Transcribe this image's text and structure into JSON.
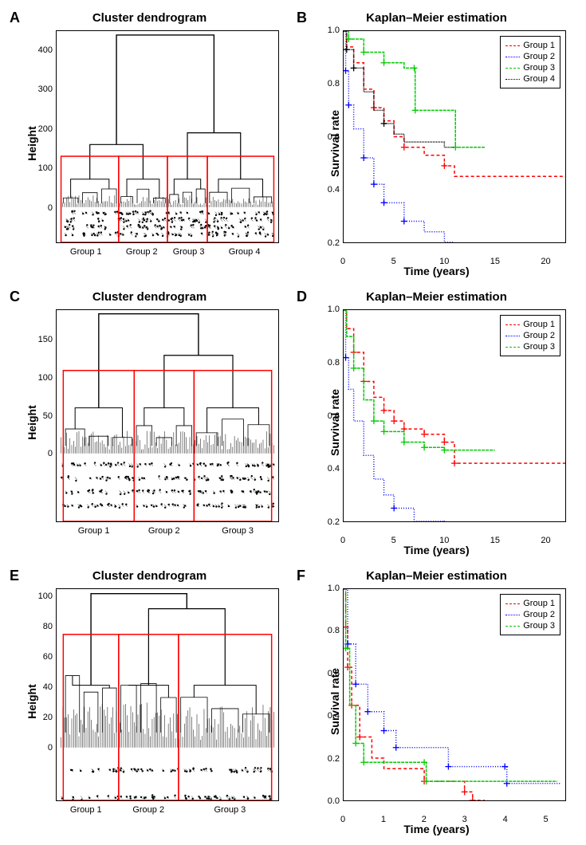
{
  "figure": {
    "background_color": "#ffffff",
    "panel_label_fontsize": 18,
    "title_fontsize": 15,
    "axis_label_fontsize": 14,
    "tick_fontsize": 11
  },
  "colors": {
    "group1": "#ff0000",
    "group2": "#0000ff",
    "group3": "#00cc00",
    "group4": "#000000",
    "cluster_box": "#ff0000",
    "axis": "#000000"
  },
  "panels": {
    "A": {
      "label": "A",
      "title": "Cluster dendrogram",
      "ylabel": "Height",
      "type": "dendrogram",
      "y_ticks": [
        0,
        100,
        200,
        300,
        400
      ],
      "ylim": [
        -90,
        450
      ],
      "groups": [
        "Group 1",
        "Group 2",
        "Group 3",
        "Group 4"
      ],
      "group_box_ymax": 130,
      "group_extents": [
        {
          "x0": 0.02,
          "x1": 0.28
        },
        {
          "x0": 0.28,
          "x1": 0.5
        },
        {
          "x0": 0.5,
          "x1": 0.68
        },
        {
          "x0": 0.68,
          "x1": 0.98
        }
      ],
      "top_merge_height": 440,
      "sub_merge_heights": [
        160,
        190
      ]
    },
    "B": {
      "label": "B",
      "title": "Kaplan–Meier estimation",
      "xlabel": "Time (years)",
      "ylabel": "Survival rate",
      "type": "km",
      "xlim": [
        0,
        22
      ],
      "ylim": [
        0.2,
        1.0
      ],
      "x_ticks": [
        0,
        5,
        10,
        15,
        20
      ],
      "y_ticks": [
        0.2,
        0.4,
        0.6,
        0.8,
        1.0
      ],
      "legend": [
        "Group 1",
        "Group 2",
        "Group 3",
        "Group 4"
      ],
      "legend_colors": [
        "#ff0000",
        "#0000ff",
        "#00cc00",
        "#000000"
      ],
      "legend_dash": [
        "4,3",
        "1,2",
        "4,1",
        "1,1"
      ],
      "series": [
        {
          "color": "#ff0000",
          "dash": "4,3",
          "points": [
            [
              0,
              1.0
            ],
            [
              0.3,
              0.94
            ],
            [
              1,
              0.88
            ],
            [
              2,
              0.78
            ],
            [
              3,
              0.71
            ],
            [
              4,
              0.66
            ],
            [
              5,
              0.6
            ],
            [
              6,
              0.56
            ],
            [
              8,
              0.53
            ],
            [
              10,
              0.49
            ],
            [
              11,
              0.45
            ],
            [
              22,
              0.45
            ]
          ]
        },
        {
          "color": "#0000ff",
          "dash": "1,2",
          "points": [
            [
              0,
              1.0
            ],
            [
              0.2,
              0.85
            ],
            [
              0.5,
              0.72
            ],
            [
              1,
              0.63
            ],
            [
              2,
              0.52
            ],
            [
              3,
              0.42
            ],
            [
              4,
              0.35
            ],
            [
              6,
              0.28
            ],
            [
              8,
              0.24
            ],
            [
              10,
              0.2
            ],
            [
              11,
              0.19
            ],
            [
              15,
              0.19
            ]
          ]
        },
        {
          "color": "#00cc00",
          "dash": "4,1",
          "points": [
            [
              0,
              1.0
            ],
            [
              0.5,
              0.97
            ],
            [
              2,
              0.92
            ],
            [
              4,
              0.88
            ],
            [
              6,
              0.86
            ],
            [
              7,
              0.86
            ],
            [
              7.1,
              0.7
            ],
            [
              11,
              0.7
            ],
            [
              11.1,
              0.56
            ],
            [
              14,
              0.56
            ]
          ]
        },
        {
          "color": "#000000",
          "dash": "1,1",
          "points": [
            [
              0,
              1.0
            ],
            [
              0.3,
              0.93
            ],
            [
              1,
              0.86
            ],
            [
              2,
              0.77
            ],
            [
              3,
              0.7
            ],
            [
              4,
              0.65
            ],
            [
              5,
              0.61
            ],
            [
              6,
              0.58
            ],
            [
              10,
              0.56
            ],
            [
              11,
              0.56
            ]
          ]
        }
      ]
    },
    "C": {
      "label": "C",
      "title": "Cluster dendrogram",
      "ylabel": "Height",
      "type": "dendrogram",
      "y_ticks": [
        0,
        50,
        100,
        150
      ],
      "ylim": [
        -90,
        190
      ],
      "groups": [
        "Group 1",
        "Group 2",
        "Group 3"
      ],
      "group_box_ymax": 110,
      "group_extents": [
        {
          "x0": 0.03,
          "x1": 0.35
        },
        {
          "x0": 0.35,
          "x1": 0.62
        },
        {
          "x0": 0.62,
          "x1": 0.97
        }
      ],
      "top_merge_height": 185,
      "sub_merge_heights": [
        130
      ]
    },
    "D": {
      "label": "D",
      "title": "Kaplan–Meier estimation",
      "xlabel": "Time (years)",
      "ylabel": "Survival rate",
      "type": "km",
      "xlim": [
        0,
        22
      ],
      "ylim": [
        0.2,
        1.0
      ],
      "x_ticks": [
        0,
        5,
        10,
        15,
        20
      ],
      "y_ticks": [
        0.2,
        0.4,
        0.6,
        0.8,
        1.0
      ],
      "legend": [
        "Group 1",
        "Group 2",
        "Group 3"
      ],
      "legend_colors": [
        "#ff0000",
        "#0000ff",
        "#00cc00"
      ],
      "legend_dash": [
        "4,3",
        "1,2",
        "4,1"
      ],
      "series": [
        {
          "color": "#ff0000",
          "dash": "4,3",
          "points": [
            [
              0,
              1.0
            ],
            [
              0.3,
              0.93
            ],
            [
              1,
              0.84
            ],
            [
              2,
              0.73
            ],
            [
              3,
              0.67
            ],
            [
              4,
              0.62
            ],
            [
              5,
              0.58
            ],
            [
              6,
              0.55
            ],
            [
              8,
              0.53
            ],
            [
              10,
              0.5
            ],
            [
              11,
              0.42
            ],
            [
              22,
              0.42
            ]
          ]
        },
        {
          "color": "#0000ff",
          "dash": "1,2",
          "points": [
            [
              0,
              1.0
            ],
            [
              0.2,
              0.82
            ],
            [
              0.5,
              0.7
            ],
            [
              1,
              0.58
            ],
            [
              2,
              0.45
            ],
            [
              3,
              0.36
            ],
            [
              4,
              0.3
            ],
            [
              5,
              0.25
            ],
            [
              7,
              0.2
            ],
            [
              10,
              0.19
            ],
            [
              15,
              0.19
            ]
          ]
        },
        {
          "color": "#00cc00",
          "dash": "4,1",
          "points": [
            [
              0,
              1.0
            ],
            [
              0.3,
              0.9
            ],
            [
              1,
              0.78
            ],
            [
              2,
              0.66
            ],
            [
              3,
              0.58
            ],
            [
              4,
              0.54
            ],
            [
              6,
              0.5
            ],
            [
              8,
              0.48
            ],
            [
              10,
              0.47
            ],
            [
              15,
              0.47
            ]
          ]
        }
      ]
    },
    "E": {
      "label": "E",
      "title": "Cluster dendrogram",
      "ylabel": "Height",
      "type": "dendrogram",
      "y_ticks": [
        0,
        20,
        40,
        60,
        80,
        100
      ],
      "ylim": [
        -35,
        105
      ],
      "groups": [
        "Group 1",
        "Group 2",
        "Group 3"
      ],
      "group_box_ymax": 75,
      "group_extents": [
        {
          "x0": 0.03,
          "x1": 0.28
        },
        {
          "x0": 0.28,
          "x1": 0.55
        },
        {
          "x0": 0.55,
          "x1": 0.97
        }
      ],
      "top_merge_height": 102,
      "sub_merge_heights": [
        92
      ]
    },
    "F": {
      "label": "F",
      "title": "Kaplan–Meier estimation",
      "xlabel": "Time (years)",
      "ylabel": "Survival rate",
      "type": "km",
      "xlim": [
        0,
        5.5
      ],
      "ylim": [
        0.0,
        1.0
      ],
      "x_ticks": [
        0,
        1,
        2,
        3,
        4,
        5
      ],
      "y_ticks": [
        0.0,
        0.2,
        0.4,
        0.6,
        0.8,
        1.0
      ],
      "legend": [
        "Group 1",
        "Group 2",
        "Group 3"
      ],
      "legend_colors": [
        "#ff0000",
        "#0000ff",
        "#00cc00"
      ],
      "legend_dash": [
        "4,3",
        "1,2",
        "4,1"
      ],
      "series": [
        {
          "color": "#ff0000",
          "dash": "4,3",
          "points": [
            [
              0,
              1.0
            ],
            [
              0.05,
              0.82
            ],
            [
              0.1,
              0.63
            ],
            [
              0.2,
              0.45
            ],
            [
              0.4,
              0.3
            ],
            [
              0.7,
              0.2
            ],
            [
              1.0,
              0.15
            ],
            [
              2.0,
              0.09
            ],
            [
              3,
              0.04
            ],
            [
              3.2,
              0.0
            ],
            [
              3.5,
              0.0
            ]
          ]
        },
        {
          "color": "#0000ff",
          "dash": "1,2",
          "points": [
            [
              0,
              1.0
            ],
            [
              0.1,
              0.74
            ],
            [
              0.3,
              0.55
            ],
            [
              0.6,
              0.42
            ],
            [
              1.0,
              0.33
            ],
            [
              1.3,
              0.25
            ],
            [
              2.5,
              0.25
            ],
            [
              2.6,
              0.16
            ],
            [
              4.0,
              0.16
            ],
            [
              4.05,
              0.08
            ],
            [
              5.4,
              0.08
            ]
          ]
        },
        {
          "color": "#00cc00",
          "dash": "4,1",
          "points": [
            [
              0,
              1.0
            ],
            [
              0.05,
              0.72
            ],
            [
              0.15,
              0.45
            ],
            [
              0.3,
              0.27
            ],
            [
              0.5,
              0.18
            ],
            [
              2.0,
              0.18
            ],
            [
              2.05,
              0.09
            ],
            [
              5.3,
              0.09
            ]
          ]
        }
      ]
    }
  }
}
